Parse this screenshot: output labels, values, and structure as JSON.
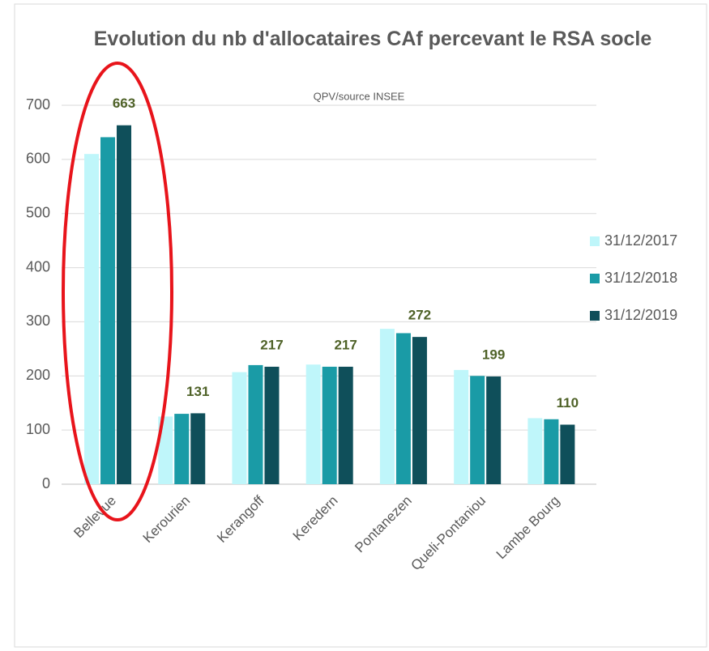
{
  "chart_data": {
    "type": "bar",
    "title": "Evolution du nb d'allocataires CAf percevant le RSA socle",
    "subtitle": "QPV/source INSEE",
    "categories": [
      "Bellevue",
      "Kerourien",
      "Kerangoff",
      "Keredern",
      "Pontanezen",
      "Queli-Pontaniou",
      "Lambe Bourg"
    ],
    "series": [
      {
        "name": "31/12/2017",
        "color": "#bff6fa",
        "values": [
          610,
          125,
          207,
          221,
          287,
          211,
          122
        ]
      },
      {
        "name": "31/12/2018",
        "color": "#1a9ba6",
        "values": [
          641,
          130,
          220,
          217,
          279,
          200,
          120
        ]
      },
      {
        "name": "31/12/2019",
        "color": "#0f4f5a",
        "values": [
          663,
          131,
          217,
          217,
          272,
          199,
          110
        ],
        "show_labels": true
      }
    ],
    "ylim": [
      0,
      700
    ],
    "yticks": [
      0,
      100,
      200,
      300,
      400,
      500,
      600,
      700
    ],
    "grid": true,
    "legend": "right"
  }
}
